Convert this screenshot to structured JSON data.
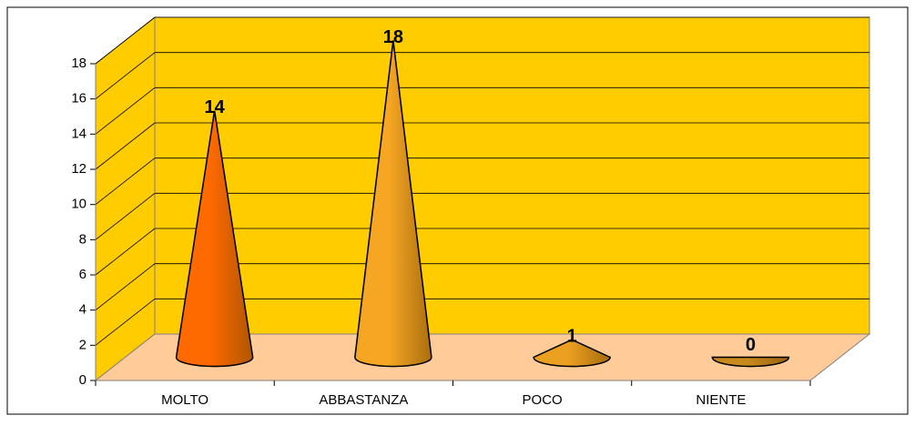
{
  "chart_data": {
    "type": "cone3d",
    "categories": [
      "MOLTO",
      "ABBASTANZA",
      "POCO",
      "NIENTE"
    ],
    "values": [
      14,
      18,
      1,
      0
    ],
    "colors": [
      "#ff6a00",
      "#f5a623",
      "#eca020",
      "#c98a1e"
    ],
    "ylim": [
      0,
      18
    ],
    "yticks": [
      0,
      2,
      4,
      6,
      8,
      10,
      12,
      14,
      16,
      18
    ],
    "grid": true,
    "wall_color": "#ffcc00",
    "floor_color": "#ffcc99"
  }
}
